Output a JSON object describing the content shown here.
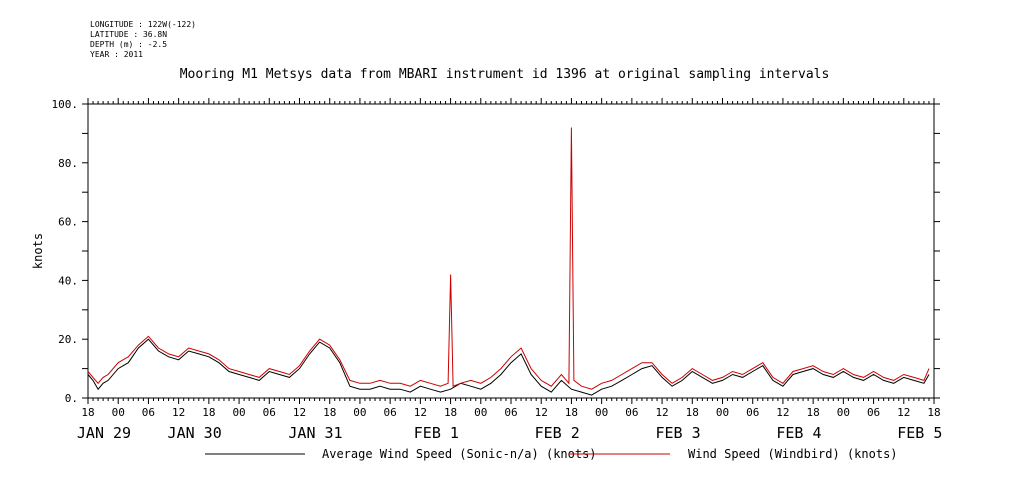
{
  "metadata": {
    "longitude": "LONGITUDE : 122W(-122)",
    "latitude": "LATITUDE : 36.8N",
    "depth": "DEPTH (m) : -2.5",
    "year": "YEAR : 2011"
  },
  "chart_data": {
    "type": "line",
    "title": "Mooring M1 Metsys data from MBARI instrument id 1396 at original sampling intervals",
    "ylabel": "knots",
    "ylim": [
      0,
      100
    ],
    "yticks": [
      {
        "value": 0,
        "label": "0."
      },
      {
        "value": 20,
        "label": "20."
      },
      {
        "value": 40,
        "label": "40."
      },
      {
        "value": 60,
        "label": "60."
      },
      {
        "value": 80,
        "label": "80."
      },
      {
        "value": 100,
        "label": "100."
      }
    ],
    "x_unit": "hours since 2011-01-28 18:00",
    "xlim": [
      0,
      168
    ],
    "hour_ticks": [
      {
        "x": 0,
        "label": "18"
      },
      {
        "x": 6,
        "label": "00"
      },
      {
        "x": 12,
        "label": "06"
      },
      {
        "x": 18,
        "label": "12"
      },
      {
        "x": 24,
        "label": "18"
      },
      {
        "x": 30,
        "label": "00"
      },
      {
        "x": 36,
        "label": "06"
      },
      {
        "x": 42,
        "label": "12"
      },
      {
        "x": 48,
        "label": "18"
      },
      {
        "x": 54,
        "label": "00"
      },
      {
        "x": 60,
        "label": "06"
      },
      {
        "x": 66,
        "label": "12"
      },
      {
        "x": 72,
        "label": "18"
      },
      {
        "x": 78,
        "label": "00"
      },
      {
        "x": 84,
        "label": "06"
      },
      {
        "x": 90,
        "label": "12"
      },
      {
        "x": 96,
        "label": "18"
      },
      {
        "x": 102,
        "label": "00"
      },
      {
        "x": 108,
        "label": "06"
      },
      {
        "x": 114,
        "label": "12"
      },
      {
        "x": 120,
        "label": "18"
      },
      {
        "x": 126,
        "label": "00"
      },
      {
        "x": 132,
        "label": "06"
      },
      {
        "x": 138,
        "label": "12"
      },
      {
        "x": 144,
        "label": "18"
      },
      {
        "x": 150,
        "label": "00"
      },
      {
        "x": 156,
        "label": "06"
      },
      {
        "x": 162,
        "label": "12"
      },
      {
        "x": 168,
        "label": "18"
      }
    ],
    "date_labels": [
      {
        "x": 0,
        "label": "JAN 29"
      },
      {
        "x": 18,
        "label": "JAN 30"
      },
      {
        "x": 42,
        "label": "JAN 31"
      },
      {
        "x": 66,
        "label": "FEB  1"
      },
      {
        "x": 90,
        "label": "FEB  2"
      },
      {
        "x": 114,
        "label": "FEB  3"
      },
      {
        "x": 138,
        "label": "FEB  4"
      },
      {
        "x": 162,
        "label": "FEB  5"
      }
    ],
    "series": [
      {
        "name": "Average Wind Speed (Sonic-n/a) (knots)",
        "color": "#000000",
        "x": [
          0,
          1,
          2,
          3,
          4,
          6,
          8,
          10,
          12,
          14,
          16,
          18,
          20,
          22,
          24,
          26,
          28,
          30,
          32,
          34,
          36,
          38,
          40,
          42,
          44,
          46,
          48,
          50,
          52,
          54,
          56,
          58,
          60,
          62,
          64,
          66,
          68,
          70,
          72,
          74,
          76,
          78,
          80,
          82,
          84,
          86,
          88,
          90,
          92,
          94,
          96,
          98,
          100,
          102,
          104,
          106,
          108,
          110,
          112,
          114,
          116,
          118,
          120,
          122,
          124,
          126,
          128,
          130,
          132,
          134,
          136,
          138,
          140,
          142,
          144,
          146,
          148,
          150,
          152,
          154,
          156,
          158,
          160,
          162,
          164,
          166,
          167
        ],
        "values": [
          8,
          6,
          3,
          5,
          6,
          10,
          12,
          17,
          20,
          16,
          14,
          13,
          16,
          15,
          14,
          12,
          9,
          8,
          7,
          6,
          9,
          8,
          7,
          10,
          15,
          19,
          17,
          12,
          4,
          3,
          3,
          4,
          3,
          3,
          2,
          4,
          3,
          2,
          3,
          5,
          4,
          3,
          5,
          8,
          12,
          15,
          8,
          4,
          2,
          6,
          3,
          2,
          1,
          3,
          4,
          6,
          8,
          10,
          11,
          7,
          4,
          6,
          9,
          7,
          5,
          6,
          8,
          7,
          9,
          11,
          6,
          4,
          8,
          9,
          10,
          8,
          7,
          9,
          7,
          6,
          8,
          6,
          5,
          7,
          6,
          5,
          8
        ]
      },
      {
        "name": "Wind Speed (Windbird) (knots)",
        "color": "#cc0000",
        "x": [
          0,
          1,
          2,
          3,
          4,
          6,
          8,
          10,
          12,
          14,
          16,
          18,
          20,
          22,
          24,
          26,
          28,
          30,
          32,
          34,
          36,
          38,
          40,
          42,
          44,
          46,
          48,
          50,
          52,
          54,
          56,
          58,
          60,
          62,
          64,
          66,
          68,
          70,
          71.5,
          72,
          72.5,
          74,
          76,
          78,
          80,
          82,
          84,
          86,
          88,
          90,
          92,
          94,
          95.5,
          96,
          96.5,
          98,
          100,
          102,
          104,
          106,
          108,
          110,
          112,
          114,
          116,
          118,
          120,
          122,
          124,
          126,
          128,
          130,
          132,
          134,
          136,
          138,
          140,
          142,
          144,
          146,
          148,
          150,
          152,
          154,
          156,
          158,
          160,
          162,
          164,
          166,
          167
        ],
        "values": [
          9,
          7,
          5,
          7,
          8,
          12,
          14,
          18,
          21,
          17,
          15,
          14,
          17,
          16,
          15,
          13,
          10,
          9,
          8,
          7,
          10,
          9,
          8,
          11,
          16,
          20,
          18,
          13,
          6,
          5,
          5,
          6,
          5,
          5,
          4,
          6,
          5,
          4,
          5,
          42,
          4,
          5,
          6,
          5,
          7,
          10,
          14,
          17,
          10,
          6,
          4,
          8,
          5,
          92,
          6,
          4,
          3,
          5,
          6,
          8,
          10,
          12,
          12,
          8,
          5,
          7,
          10,
          8,
          6,
          7,
          9,
          8,
          10,
          12,
          7,
          5,
          9,
          10,
          11,
          9,
          8,
          10,
          8,
          7,
          9,
          7,
          6,
          8,
          7,
          6,
          10
        ]
      }
    ],
    "legend_position": "bottom"
  }
}
